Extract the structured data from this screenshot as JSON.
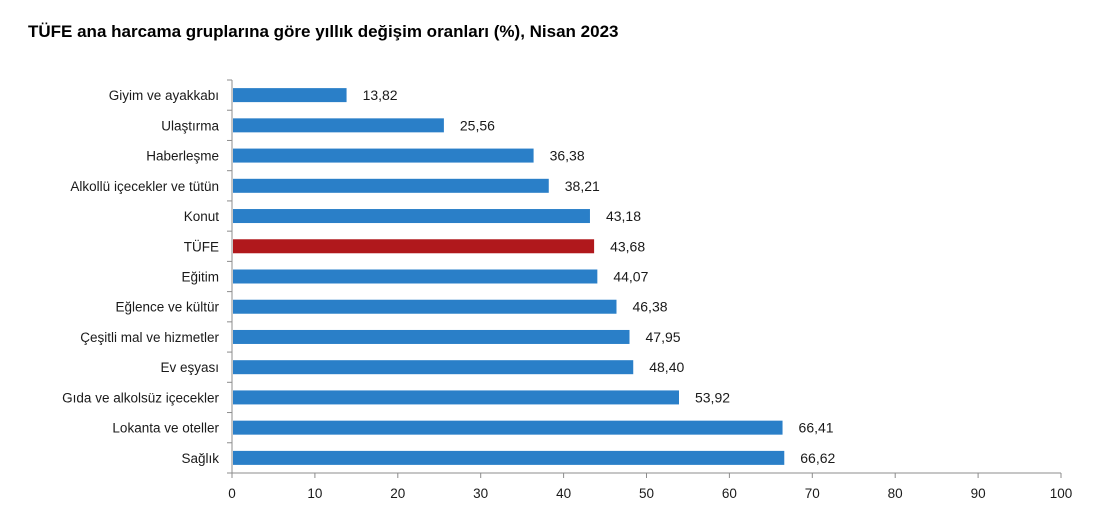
{
  "chart_data": {
    "type": "bar",
    "orientation": "horizontal",
    "title": "TÜFE ana harcama gruplarına göre yıllık değişim oranları (%), Nisan 2023",
    "xlabel": "",
    "ylabel": "",
    "xlim": [
      0,
      100
    ],
    "x_ticks": [
      0,
      10,
      20,
      30,
      40,
      50,
      60,
      70,
      80,
      90,
      100
    ],
    "grid": false,
    "categories": [
      "Giyim ve ayakkabı",
      "Ulaştırma",
      "Haberleşme",
      "Alkollü içecekler ve tütün",
      "Konut",
      "TÜFE",
      "Eğitim",
      "Eğlence ve kültür",
      "Çeşitli mal ve hizmetler",
      "Ev eşyası",
      "Gıda ve alkolsüz içecekler",
      "Lokanta ve oteller",
      "Sağlık"
    ],
    "values": [
      13.82,
      25.56,
      36.38,
      38.21,
      43.18,
      43.68,
      44.07,
      46.38,
      47.95,
      48.4,
      53.92,
      66.41,
      66.62
    ],
    "value_labels": [
      "13,82",
      "25,56",
      "36,38",
      "38,21",
      "43,18",
      "43,68",
      "44,07",
      "46,38",
      "47,95",
      "48,40",
      "53,92",
      "66,41",
      "66,62"
    ],
    "highlight_category": "TÜFE",
    "colors": {
      "bar": "#2a7fc8",
      "highlight": "#b0181c",
      "axis": "#8c8c8c"
    }
  }
}
